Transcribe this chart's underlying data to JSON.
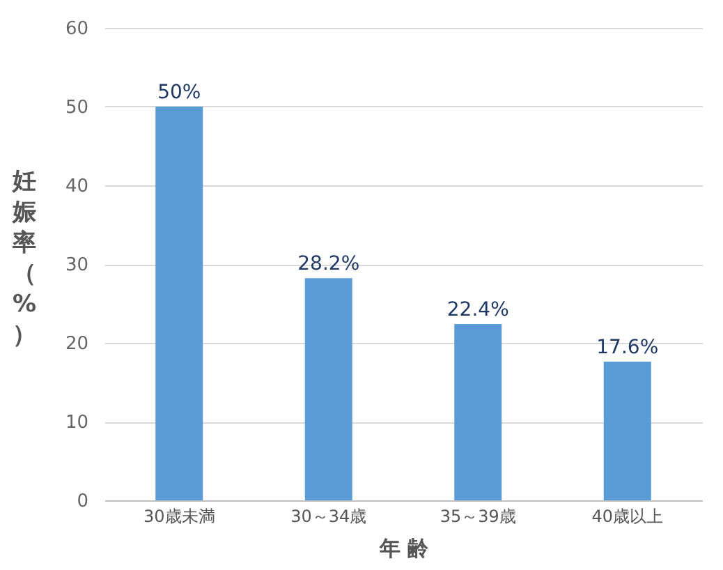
{
  "chart_data": {
    "type": "bar",
    "xlabel": "年 齢",
    "ylabel": "妊娠率（%）",
    "categories": [
      "30歳未満",
      "30～34歳",
      "35～39歳",
      "40歳以上"
    ],
    "values": [
      50,
      28.2,
      22.4,
      17.6
    ],
    "value_labels": [
      "50%",
      "28.2%",
      "22.4%",
      "17.6%"
    ],
    "color": "#5b9bd5",
    "ylim": [
      0,
      60
    ],
    "yticks": [
      0,
      10,
      20,
      30,
      40,
      50,
      60
    ],
    "grid": "y"
  }
}
